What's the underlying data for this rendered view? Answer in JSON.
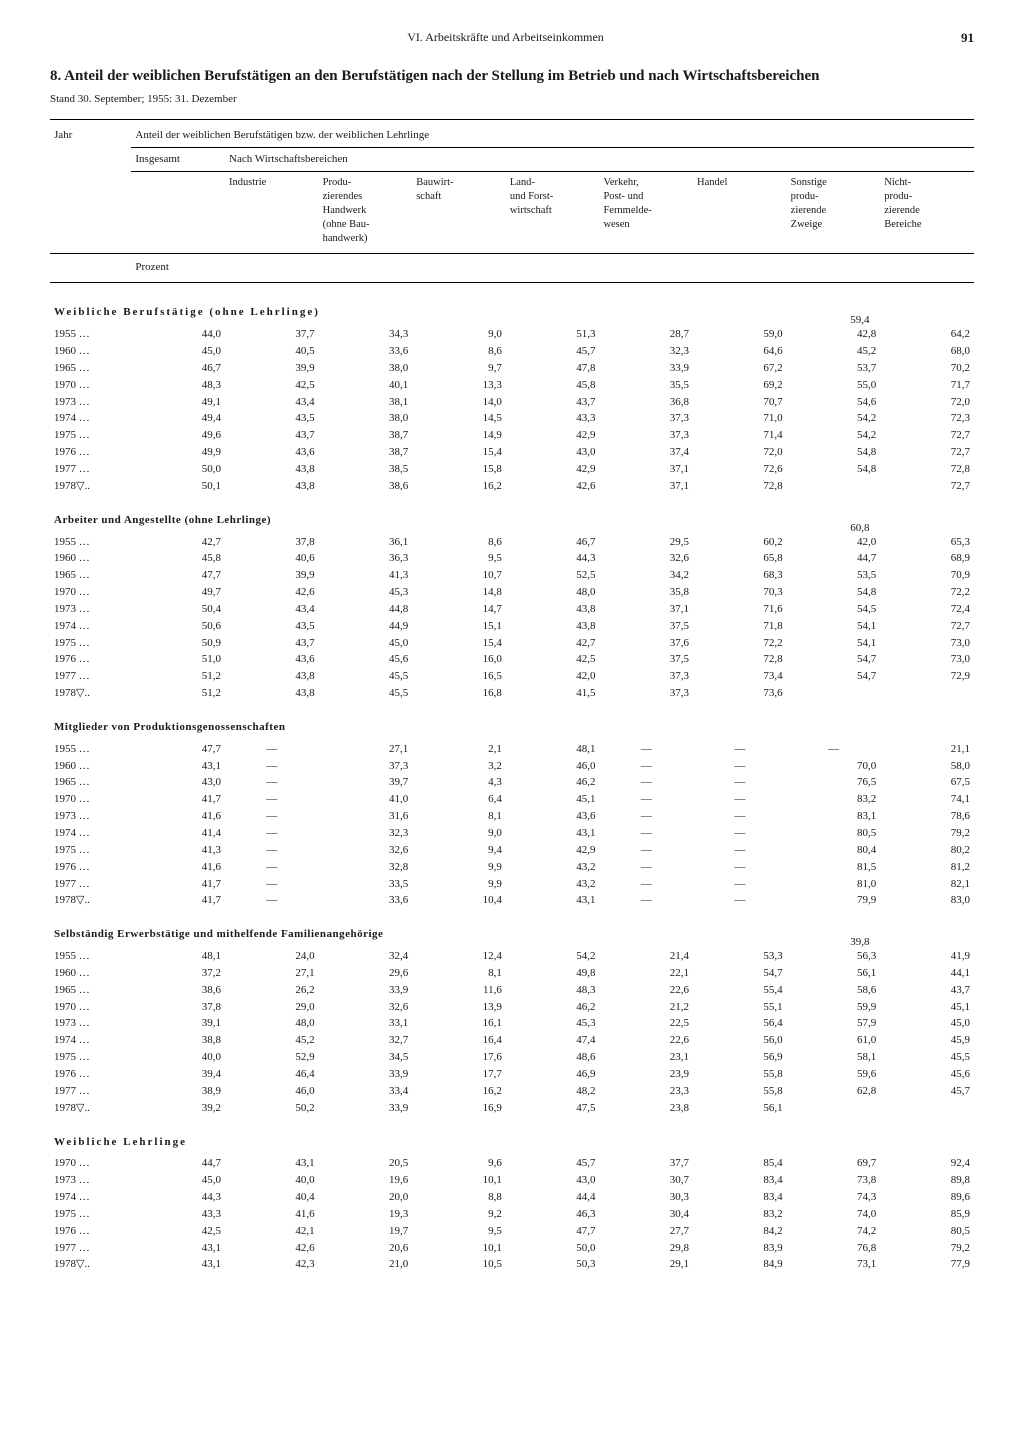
{
  "header": {
    "chapter": "VI. Arbeitskräfte und Arbeitseinkommen",
    "page": "91"
  },
  "title": "8. Anteil der weiblichen Berufstätigen an den Berufstätigen nach der Stellung im Betrieb und nach Wirtschaftsbereichen",
  "stand": "Stand 30. September; 1955: 31. Dezember",
  "columns": {
    "jahr": "Jahr",
    "anteil": "Anteil der weiblichen Berufstätigen bzw. der weiblichen Lehrlinge",
    "insgesamt": "Insgesamt",
    "nach": "Nach Wirtschaftsbereichen",
    "industrie": "Industrie",
    "handwerk": "Produ-\nzierendes\nHandwerk\n(ohne Bau-\nhandwerk)",
    "bau": "Bauwirt-\nschaft",
    "land": "Land-\nund Forst-\nwirtschaft",
    "verkehr": "Verkehr,\nPost- und\nFernmelde-\nwesen",
    "handel": "Handel",
    "sonstige": "Sonstige\nprodu-\nzierende\nZweige",
    "nicht": "Nicht-\nprodu-\nzierende\nBereiche",
    "prozent": "Prozent"
  },
  "sections": [
    {
      "title": "Weibliche Berufstätige (ohne Lehrlinge)",
      "spaced": true,
      "topSpecial": {
        "col8": "59,4"
      },
      "rows": [
        [
          "1955 …",
          "44,0",
          "37,7",
          "34,3",
          "9,0",
          "51,3",
          "28,7",
          "59,0",
          "42,8",
          "64,2"
        ],
        [
          "1960 …",
          "45,0",
          "40,5",
          "33,6",
          "8,6",
          "45,7",
          "32,3",
          "64,6",
          "45,2",
          "68,0"
        ],
        [
          "1965 …",
          "46,7",
          "39,9",
          "38,0",
          "9,7",
          "47,8",
          "33,9",
          "67,2",
          "53,7",
          "70,2"
        ],
        [
          "1970 …",
          "48,3",
          "42,5",
          "40,1",
          "13,3",
          "45,8",
          "35,5",
          "69,2",
          "55,0",
          "71,7"
        ],
        [
          "1973 …",
          "49,1",
          "43,4",
          "38,1",
          "14,0",
          "43,7",
          "36,8",
          "70,7",
          "54,6",
          "72,0"
        ],
        [
          "1974 …",
          "49,4",
          "43,5",
          "38,0",
          "14,5",
          "43,3",
          "37,3",
          "71,0",
          "54,2",
          "72,3"
        ],
        [
          "1975 …",
          "49,6",
          "43,7",
          "38,7",
          "14,9",
          "42,9",
          "37,3",
          "71,4",
          "54,2",
          "72,7"
        ],
        [
          "1976 …",
          "49,9",
          "43,6",
          "38,7",
          "15,4",
          "43,0",
          "37,4",
          "72,0",
          "54,8",
          "72,7"
        ],
        [
          "1977 …",
          "50,0",
          "43,8",
          "38,5",
          "15,8",
          "42,9",
          "37,1",
          "72,6",
          "54,8",
          "72,8"
        ],
        [
          "1978▽..",
          "50,1",
          "43,8",
          "38,6",
          "16,2",
          "42,6",
          "37,1",
          "72,8",
          "",
          "72,7"
        ]
      ]
    },
    {
      "title": "Arbeiter und Angestellte (ohne Lehrlinge)",
      "spaced": false,
      "topSpecial": {
        "col8": "60,8"
      },
      "rows": [
        [
          "1955 …",
          "42,7",
          "37,8",
          "36,1",
          "8,6",
          "46,7",
          "29,5",
          "60,2",
          "42,0",
          "65,3"
        ],
        [
          "1960 …",
          "45,8",
          "40,6",
          "36,3",
          "9,5",
          "44,3",
          "32,6",
          "65,8",
          "44,7",
          "68,9"
        ],
        [
          "1965 …",
          "47,7",
          "39,9",
          "41,3",
          "10,7",
          "52,5",
          "34,2",
          "68,3",
          "53,5",
          "70,9"
        ],
        [
          "1970 …",
          "49,7",
          "42,6",
          "45,3",
          "14,8",
          "48,0",
          "35,8",
          "70,3",
          "54,8",
          "72,2"
        ],
        [
          "1973 …",
          "50,4",
          "43,4",
          "44,8",
          "14,7",
          "43,8",
          "37,1",
          "71,6",
          "54,5",
          "72,4"
        ],
        [
          "1974 …",
          "50,6",
          "43,5",
          "44,9",
          "15,1",
          "43,8",
          "37,5",
          "71,8",
          "54,1",
          "72,7"
        ],
        [
          "1975 …",
          "50,9",
          "43,7",
          "45,0",
          "15,4",
          "42,7",
          "37,6",
          "72,2",
          "54,1",
          "73,0"
        ],
        [
          "1976 …",
          "51,0",
          "43,6",
          "45,6",
          "16,0",
          "42,5",
          "37,5",
          "72,8",
          "54,7",
          "73,0"
        ],
        [
          "1977 …",
          "51,2",
          "43,8",
          "45,5",
          "16,5",
          "42,0",
          "37,3",
          "73,4",
          "54,7",
          "72,9"
        ],
        [
          "1978▽..",
          "51,2",
          "43,8",
          "45,5",
          "16,8",
          "41,5",
          "37,3",
          "73,6",
          "",
          ""
        ]
      ]
    },
    {
      "title": "Mitglieder von Produktionsgenossenschaften",
      "spaced": false,
      "rows": [
        [
          "1955 …",
          "47,7",
          "—",
          "27,1",
          "2,1",
          "48,1",
          "—",
          "—",
          "—",
          "21,1"
        ],
        [
          "1960 …",
          "43,1",
          "—",
          "37,3",
          "3,2",
          "46,0",
          "—",
          "—",
          "70,0",
          "58,0"
        ],
        [
          "1965 …",
          "43,0",
          "—",
          "39,7",
          "4,3",
          "46,2",
          "—",
          "—",
          "76,5",
          "67,5"
        ],
        [
          "1970 …",
          "41,7",
          "—",
          "41,0",
          "6,4",
          "45,1",
          "—",
          "—",
          "83,2",
          "74,1"
        ],
        [
          "1973 …",
          "41,6",
          "—",
          "31,6",
          "8,1",
          "43,6",
          "—",
          "—",
          "83,1",
          "78,6"
        ],
        [
          "1974 …",
          "41,4",
          "—",
          "32,3",
          "9,0",
          "43,1",
          "—",
          "—",
          "80,5",
          "79,2"
        ],
        [
          "1975 …",
          "41,3",
          "—",
          "32,6",
          "9,4",
          "42,9",
          "—",
          "—",
          "80,4",
          "80,2"
        ],
        [
          "1976 …",
          "41,6",
          "—",
          "32,8",
          "9,9",
          "43,2",
          "—",
          "—",
          "81,5",
          "81,2"
        ],
        [
          "1977 …",
          "41,7",
          "—",
          "33,5",
          "9,9",
          "43,2",
          "—",
          "—",
          "81,0",
          "82,1"
        ],
        [
          "1978▽..",
          "41,7",
          "—",
          "33,6",
          "10,4",
          "43,1",
          "—",
          "—",
          "79,9",
          "83,0"
        ]
      ]
    },
    {
      "title": "Selbständig Erwerbstätige und mithelfende Familienangehörige",
      "spaced": false,
      "topSpecial": {
        "col8": "39,8"
      },
      "rows": [
        [
          "1955 …",
          "48,1",
          "24,0",
          "32,4",
          "12,4",
          "54,2",
          "21,4",
          "53,3",
          "56,3",
          "41,9"
        ],
        [
          "1960 …",
          "37,2",
          "27,1",
          "29,6",
          "8,1",
          "49,8",
          "22,1",
          "54,7",
          "56,1",
          "44,1"
        ],
        [
          "1965 …",
          "38,6",
          "26,2",
          "33,9",
          "11,6",
          "48,3",
          "22,6",
          "55,4",
          "58,6",
          "43,7"
        ],
        [
          "1970 …",
          "37,8",
          "29,0",
          "32,6",
          "13,9",
          "46,2",
          "21,2",
          "55,1",
          "59,9",
          "45,1"
        ],
        [
          "1973 …",
          "39,1",
          "48,0",
          "33,1",
          "16,1",
          "45,3",
          "22,5",
          "56,4",
          "57,9",
          "45,0"
        ],
        [
          "1974 …",
          "38,8",
          "45,2",
          "32,7",
          "16,4",
          "47,4",
          "22,6",
          "56,0",
          "61,0",
          "45,9"
        ],
        [
          "1975 …",
          "40,0",
          "52,9",
          "34,5",
          "17,6",
          "48,6",
          "23,1",
          "56,9",
          "58,1",
          "45,5"
        ],
        [
          "1976 …",
          "39,4",
          "46,4",
          "33,9",
          "17,7",
          "46,9",
          "23,9",
          "55,8",
          "59,6",
          "45,6"
        ],
        [
          "1977 …",
          "38,9",
          "46,0",
          "33,4",
          "16,2",
          "48,2",
          "23,3",
          "55,8",
          "62,8",
          "45,7"
        ],
        [
          "1978▽..",
          "39,2",
          "50,2",
          "33,9",
          "16,9",
          "47,5",
          "23,8",
          "56,1",
          "",
          ""
        ]
      ]
    },
    {
      "title": "Weibliche Lehrlinge",
      "spaced": true,
      "rows": [
        [
          "1970 …",
          "44,7",
          "43,1",
          "20,5",
          "9,6",
          "45,7",
          "37,7",
          "85,4",
          "69,7",
          "92,4"
        ],
        [
          "1973 …",
          "45,0",
          "40,0",
          "19,6",
          "10,1",
          "43,0",
          "30,7",
          "83,4",
          "73,8",
          "89,8"
        ],
        [
          "1974 …",
          "44,3",
          "40,4",
          "20,0",
          "8,8",
          "44,4",
          "30,3",
          "83,4",
          "74,3",
          "89,6"
        ],
        [
          "1975 …",
          "43,3",
          "41,6",
          "19,3",
          "9,2",
          "46,3",
          "30,4",
          "83,2",
          "74,0",
          "85,9"
        ],
        [
          "1976 …",
          "42,5",
          "42,1",
          "19,7",
          "9,5",
          "47,7",
          "27,7",
          "84,2",
          "74,2",
          "80,5"
        ],
        [
          "1977 …",
          "43,1",
          "42,6",
          "20,6",
          "10,1",
          "50,0",
          "29,8",
          "83,9",
          "76,8",
          "79,2"
        ],
        [
          "1978▽..",
          "43,1",
          "42,3",
          "21,0",
          "10,5",
          "50,3",
          "29,1",
          "84,9",
          "73,1",
          "77,9"
        ]
      ]
    }
  ]
}
